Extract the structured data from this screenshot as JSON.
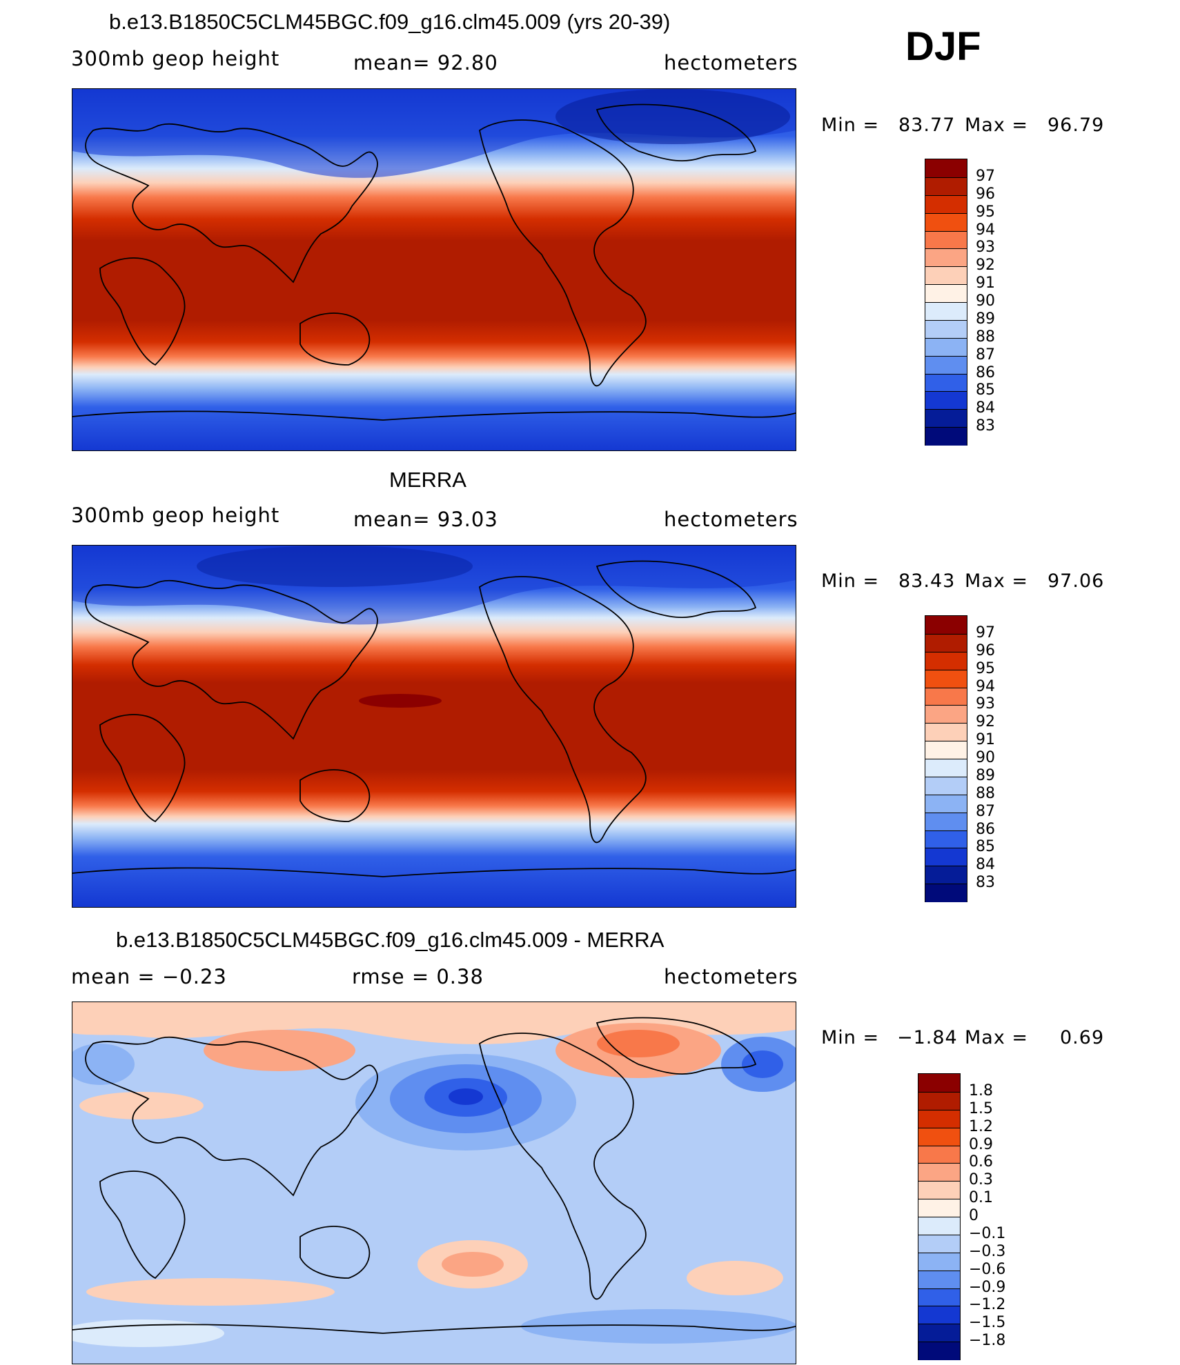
{
  "season": "DJF",
  "panels": [
    {
      "title": "b.e13.B1850C5CLM45BGC.f09_g16.clm45.009 (yrs 20-39)",
      "left_label": "300mb  geop  height",
      "center_label": "mean=   92.80",
      "units": "hectometers",
      "min_label": "Min  =",
      "min_value": "83.77",
      "max_label": "Max  =",
      "max_value": "96.79",
      "levels": [
        "97",
        "96",
        "95",
        "94",
        "93",
        "92",
        "91",
        "90",
        "89",
        "88",
        "87",
        "86",
        "85",
        "84",
        "83"
      ],
      "colors": [
        "#8b0000",
        "#b01c00",
        "#d42e00",
        "#f05010",
        "#f8784a",
        "#fba584",
        "#fdd0b8",
        "#fff2e6",
        "#dcebfb",
        "#b3cdf7",
        "#8cb3f4",
        "#5f8ef0",
        "#3060e8",
        "#1438d2",
        "#051c98",
        "#000a7a"
      ]
    },
    {
      "title": "MERRA",
      "left_label": "300mb  geop  height",
      "center_label": "mean=   93.03",
      "units": "hectometers",
      "min_label": "Min  =",
      "min_value": "83.43",
      "max_label": "Max  =",
      "max_value": "97.06",
      "levels": [
        "97",
        "96",
        "95",
        "94",
        "93",
        "92",
        "91",
        "90",
        "89",
        "88",
        "87",
        "86",
        "85",
        "84",
        "83"
      ],
      "colors": [
        "#8b0000",
        "#b01c00",
        "#d42e00",
        "#f05010",
        "#f8784a",
        "#fba584",
        "#fdd0b8",
        "#fff2e6",
        "#dcebfb",
        "#b3cdf7",
        "#8cb3f4",
        "#5f8ef0",
        "#3060e8",
        "#1438d2",
        "#051c98",
        "#000a7a"
      ]
    },
    {
      "title": "b.e13.B1850C5CLM45BGC.f09_g16.clm45.009 - MERRA",
      "left_label": "mean  =     −0.23",
      "center_label": "rmse  =     0.38",
      "units": "hectometers",
      "min_label": "Min  =",
      "min_value": "−1.84",
      "max_label": "Max  =",
      "max_value": "0.69",
      "levels": [
        "1.8",
        "1.5",
        "1.2",
        "0.9",
        "0.6",
        "0.3",
        "0.1",
        "0",
        "−0.1",
        "−0.3",
        "−0.6",
        "−0.9",
        "−1.2",
        "−1.5",
        "−1.8"
      ],
      "colors": [
        "#8b0000",
        "#b01c00",
        "#d42e00",
        "#f05010",
        "#f8784a",
        "#fba584",
        "#fdd0b8",
        "#fff2e6",
        "#dcebfb",
        "#b3cdf7",
        "#8cb3f4",
        "#5f8ef0",
        "#3060e8",
        "#1438d2",
        "#051c98",
        "#000a7a"
      ]
    }
  ]
}
